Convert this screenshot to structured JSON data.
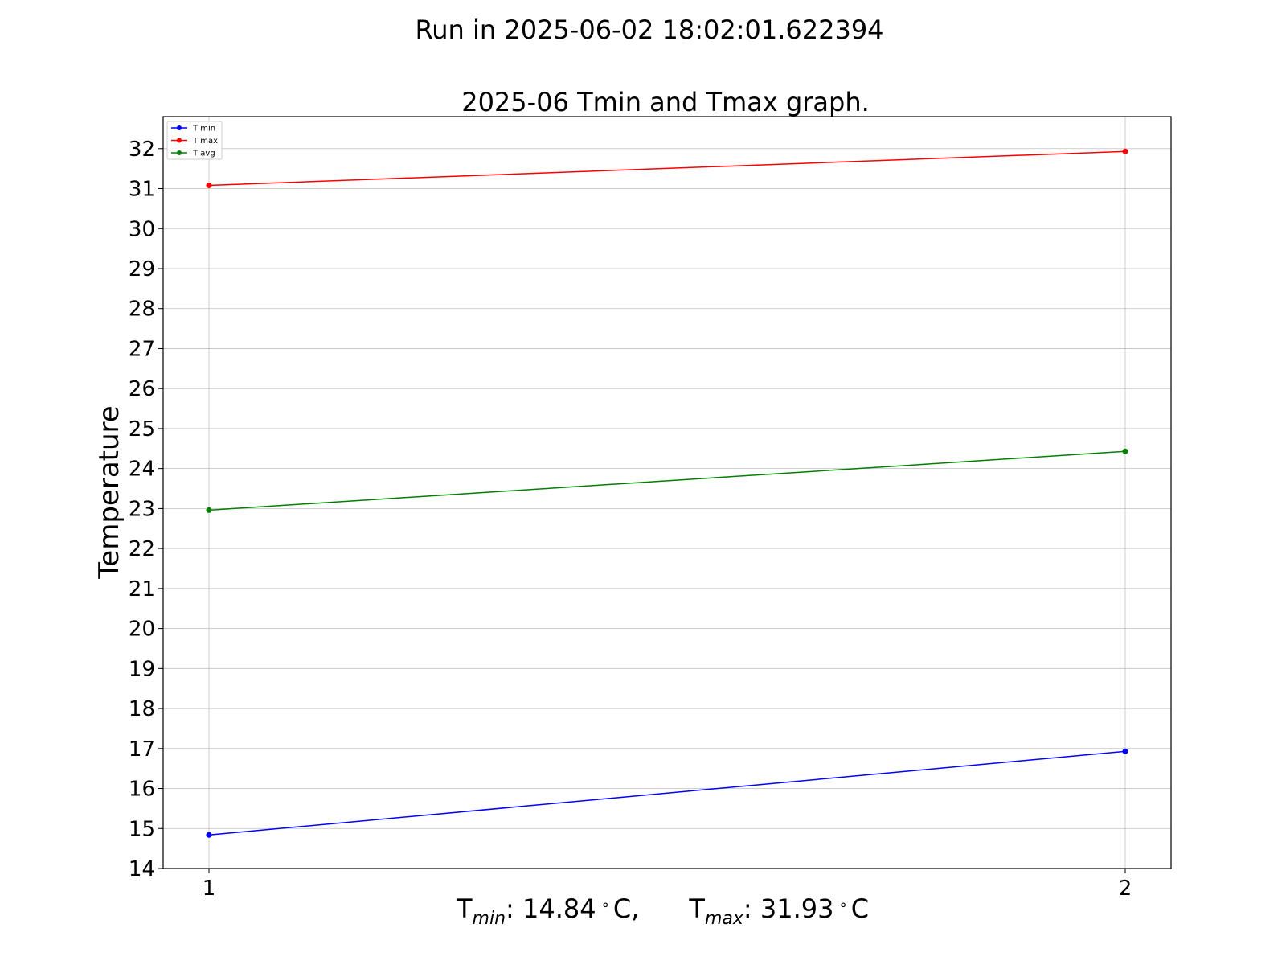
{
  "chart_data": {
    "type": "line",
    "suptitle": "Run in 2025-06-02 18:02:01.622394",
    "title": "2025-06 Tmin and Tmax graph.",
    "ylabel": "Temperature",
    "xlabel": {
      "tmin_text": "T",
      "tmin_sub": "min",
      "tmin_value": ": 14.84",
      "tmin_unit": "C,",
      "tmax_text": "T",
      "tmax_sub": "max",
      "tmax_value": ": 31.93",
      "tmax_unit": "C",
      "degree": "∘"
    },
    "x": [
      1,
      2
    ],
    "x_tick_labels": [
      "1",
      "2"
    ],
    "y_ticks": [
      14,
      15,
      16,
      17,
      18,
      19,
      20,
      21,
      22,
      23,
      24,
      25,
      26,
      27,
      28,
      29,
      30,
      31,
      32
    ],
    "ylim": [
      14,
      32.8
    ],
    "xlim": [
      0.95,
      2.05
    ],
    "grid": true,
    "legend_position": "top-left",
    "series": [
      {
        "name": "T min",
        "color": "#0000ff",
        "values": [
          14.84,
          16.93
        ]
      },
      {
        "name": "T max",
        "color": "#ff0000",
        "values": [
          31.08,
          31.93
        ]
      },
      {
        "name": "T avg",
        "color": "#008000",
        "values": [
          22.96,
          24.43
        ]
      }
    ]
  }
}
